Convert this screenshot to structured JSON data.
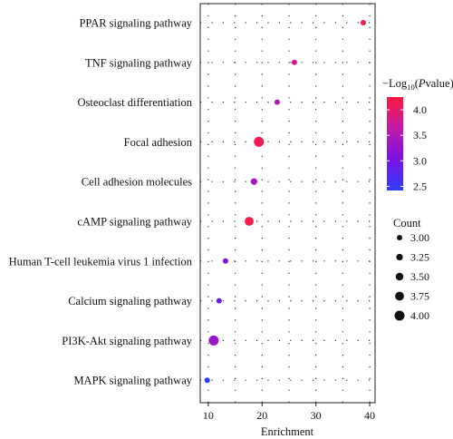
{
  "chart_data": {
    "type": "scatter",
    "title": "",
    "xlabel": "Enrichment",
    "ylabel": "",
    "xlim": [
      8.5,
      41
    ],
    "xticks": [
      10,
      20,
      30,
      40
    ],
    "grid": true,
    "categories": [
      "PPAR signaling pathway",
      "TNF signaling pathway",
      "Osteoclast differentiation",
      "Focal adhesion",
      "Cell adhesion molecules",
      "cAMP signaling pathway",
      "Human T-cell leukemia virus 1 infection",
      "Calcium signaling pathway",
      "PI3K-Akt signaling pathway",
      "MAPK signaling pathway"
    ],
    "points": [
      {
        "category": "PPAR signaling pathway",
        "enrichment": 38.8,
        "count": 3.0,
        "neg_log10_p": 4.2
      },
      {
        "category": "TNF signaling pathway",
        "enrichment": 26.0,
        "count": 3.0,
        "neg_log10_p": 3.8
      },
      {
        "category": "Osteoclast differentiation",
        "enrichment": 22.8,
        "count": 3.0,
        "neg_log10_p": 3.5
      },
      {
        "category": "Focal adhesion",
        "enrichment": 19.4,
        "count": 4.0,
        "neg_log10_p": 4.1
      },
      {
        "category": "Cell adhesion molecules",
        "enrichment": 18.5,
        "count": 3.25,
        "neg_log10_p": 3.4
      },
      {
        "category": "cAMP signaling pathway",
        "enrichment": 17.6,
        "count": 3.75,
        "neg_log10_p": 4.2
      },
      {
        "category": "Human T-cell leukemia virus 1 infection",
        "enrichment": 13.2,
        "count": 3.0,
        "neg_log10_p": 3.1
      },
      {
        "category": "Calcium signaling pathway",
        "enrichment": 12.0,
        "count": 3.0,
        "neg_log10_p": 2.9
      },
      {
        "category": "PI3K-Akt signaling pathway",
        "enrichment": 11.0,
        "count": 4.0,
        "neg_log10_p": 3.3
      },
      {
        "category": "MAPK signaling pathway",
        "enrichment": 9.8,
        "count": 3.0,
        "neg_log10_p": 2.5
      }
    ],
    "color_legend": {
      "title_prefix": "−Log",
      "title_sub": "10",
      "title_open": "(",
      "title_italic": "P",
      "title_rest": "value)",
      "range": [
        2.42,
        4.25
      ],
      "ticks": [
        2.5,
        3.0,
        3.5,
        4.0
      ],
      "tick_labels": [
        "2.5",
        "3.0",
        "3.5",
        "4.0"
      ],
      "colors": [
        "#2d3fff",
        "#7a12e3",
        "#c01ba8",
        "#ff1a3c"
      ]
    },
    "size_legend": {
      "title": "Count",
      "values": [
        3.0,
        3.25,
        3.5,
        3.75,
        4.0
      ],
      "labels": [
        "3.00",
        "3.25",
        "3.50",
        "3.75",
        "4.00"
      ],
      "size_range": [
        3.0,
        4.0
      ]
    }
  }
}
